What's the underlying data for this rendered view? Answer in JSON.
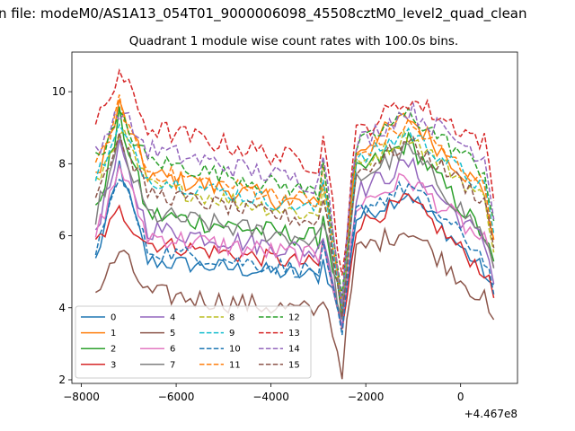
{
  "figure": {
    "suptitle": "n file: modeM0/AS1A13_054T01_9000006098_45508cztM0_level2_quad_clean",
    "title": "Quadrant 1 module wise count rates with 100.0s bins."
  },
  "chart_data": {
    "type": "line",
    "title": "Quadrant 1 module wise count rates with 100.0s bins.",
    "xlabel": "",
    "ylabel": "",
    "x_offset_label": "+4.467e8",
    "xlim": [
      -8200,
      1200
    ],
    "ylim": [
      1.9,
      11.1
    ],
    "xticks": [
      -8000,
      -6000,
      -4000,
      -2000,
      0
    ],
    "xtick_labels": [
      "−8000",
      "−6000",
      "−4000",
      "−2000",
      "0"
    ],
    "yticks": [
      2,
      4,
      6,
      8,
      10
    ],
    "ytick_labels": [
      "2",
      "4",
      "6",
      "8",
      "10"
    ],
    "grid": false,
    "legend_location": "lower-left",
    "legend_ncol": 4,
    "x_range": [
      -7700,
      750
    ],
    "bin_width": 100,
    "series_profiles": [
      {
        "name": "0",
        "color": "#1f77b4",
        "dash": "solid",
        "base": 5.3,
        "peak": 8.0,
        "dip": 3.6,
        "late_peak": 7.2,
        "end": 5.0,
        "noise": 0.25
      },
      {
        "name": "1",
        "color": "#ff7f0e",
        "dash": "solid",
        "base": 7.7,
        "peak": 9.6,
        "dip": 4.0,
        "late_peak": 9.3,
        "end": 7.2,
        "noise": 0.3
      },
      {
        "name": "2",
        "color": "#2ca02c",
        "dash": "solid",
        "base": 6.6,
        "peak": 9.3,
        "dip": 3.8,
        "late_peak": 8.6,
        "end": 6.0,
        "noise": 0.3
      },
      {
        "name": "3",
        "color": "#d62728",
        "dash": "solid",
        "base": 5.8,
        "peak": 6.7,
        "dip": 3.3,
        "late_peak": 7.0,
        "end": 5.0,
        "noise": 0.25
      },
      {
        "name": "4",
        "color": "#9467bd",
        "dash": "solid",
        "base": 6.2,
        "peak": 8.4,
        "dip": 3.5,
        "late_peak": 8.0,
        "end": 5.8,
        "noise": 0.3
      },
      {
        "name": "5",
        "color": "#8c564b",
        "dash": "solid",
        "base": 4.4,
        "peak": 5.6,
        "dip": 2.3,
        "late_peak": 6.2,
        "end": 4.2,
        "noise": 0.3
      },
      {
        "name": "6",
        "color": "#e377c2",
        "dash": "solid",
        "base": 6.0,
        "peak": 8.0,
        "dip": 3.5,
        "late_peak": 7.6,
        "end": 5.8,
        "noise": 0.3
      },
      {
        "name": "7",
        "color": "#7f7f7f",
        "dash": "solid",
        "base": 6.6,
        "peak": 8.6,
        "dip": 3.6,
        "late_peak": 8.4,
        "end": 6.0,
        "noise": 0.3
      },
      {
        "name": "8",
        "color": "#bcbd22",
        "dash": "dashed",
        "base": 7.4,
        "peak": 9.0,
        "dip": 3.9,
        "late_peak": 8.8,
        "end": 7.0,
        "noise": 0.25
      },
      {
        "name": "9",
        "color": "#17becf",
        "dash": "dashed",
        "base": 7.6,
        "peak": 9.0,
        "dip": 4.0,
        "late_peak": 8.9,
        "end": 7.3,
        "noise": 0.25
      },
      {
        "name": "10",
        "color": "#1f77b4",
        "dash": "dashed",
        "base": 5.6,
        "peak": 7.8,
        "dip": 3.2,
        "late_peak": 7.4,
        "end": 5.4,
        "noise": 0.25
      },
      {
        "name": "11",
        "color": "#ff7f0e",
        "dash": "dashed",
        "base": 7.8,
        "peak": 9.7,
        "dip": 4.2,
        "late_peak": 9.1,
        "end": 7.4,
        "noise": 0.25
      },
      {
        "name": "12",
        "color": "#2ca02c",
        "dash": "dashed",
        "base": 8.1,
        "peak": 9.3,
        "dip": 4.4,
        "late_peak": 9.4,
        "end": 7.8,
        "noise": 0.25
      },
      {
        "name": "13",
        "color": "#d62728",
        "dash": "dashed",
        "base": 9.0,
        "peak": 10.6,
        "dip": 4.8,
        "late_peak": 9.8,
        "end": 8.6,
        "noise": 0.3
      },
      {
        "name": "14",
        "color": "#9467bd",
        "dash": "dashed",
        "base": 8.4,
        "peak": 9.5,
        "dip": 4.4,
        "late_peak": 9.5,
        "end": 8.2,
        "noise": 0.3
      },
      {
        "name": "15",
        "color": "#8c564b",
        "dash": "dashed",
        "base": 7.2,
        "peak": 8.8,
        "dip": 3.8,
        "late_peak": 8.6,
        "end": 7.0,
        "noise": 0.25
      }
    ]
  }
}
